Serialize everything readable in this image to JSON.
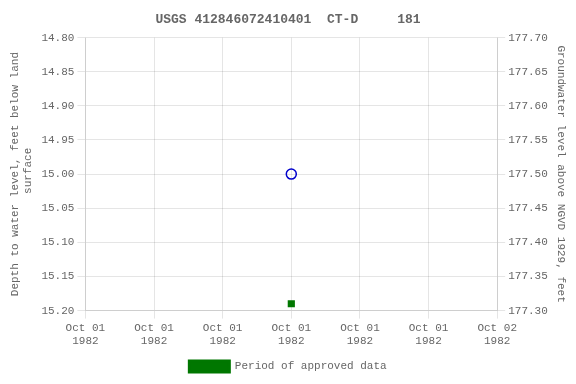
{
  "chart_data": {
    "type": "scatter",
    "title": "USGS 412846072410401  CT-D     181",
    "ylabel": "Depth to water level, feet below land\n surface",
    "y2label": "Groundwater level above NGVD 1929, feet",
    "categories": [
      "Oct 01\n1982",
      "Oct 01\n1982",
      "Oct 01\n1982",
      "Oct 01\n1982",
      "Oct 01\n1982",
      "Oct 01\n1982",
      "Oct 02\n1982"
    ],
    "series": [
      {
        "color": "#0000cc",
        "marker": "open_circle",
        "values": [
          null,
          null,
          null,
          15.0,
          null,
          null,
          null
        ]
      },
      {
        "name": "Period of approved data",
        "color": "#007700",
        "marker": "square",
        "values": [
          null,
          null,
          null,
          15.19,
          null,
          null,
          null
        ]
      }
    ],
    "ylim": [
      15.2,
      14.8
    ],
    "yticks": [
      {
        "value": 14.8,
        "label": "14.80"
      },
      14.85,
      {
        "value": 14.9,
        "label": "14.90"
      },
      14.95,
      {
        "value": 15.0,
        "label": "15.00"
      },
      15.05,
      {
        "value": 15.1,
        "label": "15.10"
      },
      15.15,
      {
        "value": 15.2,
        "label": "15.20"
      }
    ],
    "y2lim": [
      177.3,
      177.7
    ],
    "y2ticks": [
      {
        "value": 177.7,
        "label": "177.70"
      },
      177.65,
      {
        "value": 177.6,
        "label": "177.60"
      },
      177.55,
      {
        "value": 177.5,
        "label": "177.50"
      },
      177.45,
      {
        "value": 177.4,
        "label": "177.40"
      },
      177.35,
      {
        "value": 177.3,
        "label": "177.30"
      }
    ],
    "grid": true,
    "legend": "bottom"
  }
}
